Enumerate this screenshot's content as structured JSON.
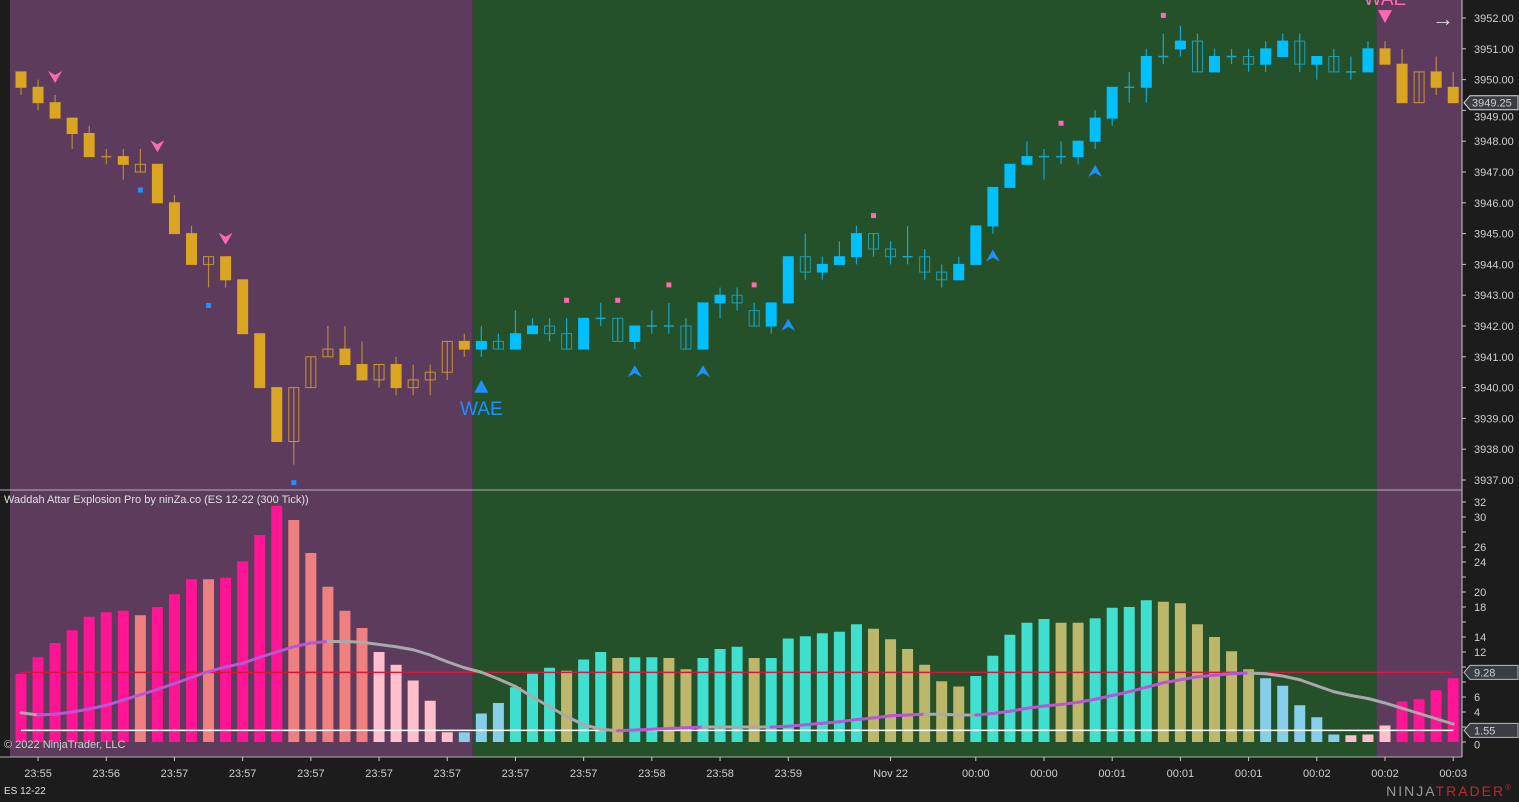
{
  "indicator_title": "Waddah Attar Explosion Pro by ninZa.co (ES 12-22 (300 Tick))",
  "copyright": "© 2022 NinjaTrader, LLC",
  "instrument": "ES 12-22",
  "logo": {
    "part1": "NINJA",
    "part2": "TRADER",
    "mark": "®"
  },
  "scroll_icon": "arrow-right-icon",
  "colors": {
    "bear_background": "#5c3b5c",
    "bull_background": "#24502a",
    "bear_candle": "#DAA520",
    "bull_candle": "#00BFFF",
    "signal_rising": "#BA55D3",
    "signal_falling": "#A9A9A9",
    "explosion_line": "#DC143C",
    "dead_zone": "#FFFFFF",
    "sell_marker": "#FF69B4",
    "buy_marker": "#1E90FF"
  },
  "chart_data": [
    {
      "type": "candlestick",
      "title": "",
      "ylim": [
        3936.75,
        3952.5
      ],
      "yticks": [
        "3952.00",
        "3951.00",
        "3950.00",
        "3949.00",
        "3948.00",
        "3947.00",
        "3946.00",
        "3945.00",
        "3944.00",
        "3943.00",
        "3942.00",
        "3941.00",
        "3940.00",
        "3939.00",
        "3938.00",
        "3937.00"
      ],
      "last_price": "3949.25",
      "trend_regions": [
        {
          "trend": "bearish",
          "from_bar": 0,
          "to_bar": 26
        },
        {
          "trend": "bullish",
          "from_bar": 27,
          "to_bar": 79
        },
        {
          "trend": "bearish",
          "from_bar": 80,
          "to_bar": 84
        }
      ],
      "ohlc": [
        [
          3950.25,
          3950.25,
          3949.5,
          3949.75
        ],
        [
          3949.75,
          3950.0,
          3949.0,
          3949.25
        ],
        [
          3949.25,
          3949.5,
          3948.75,
          3948.75
        ],
        [
          3948.75,
          3948.75,
          3947.75,
          3948.25
        ],
        [
          3948.25,
          3948.5,
          3947.5,
          3947.5
        ],
        [
          3947.5,
          3947.75,
          3947.25,
          3947.5
        ],
        [
          3947.5,
          3947.75,
          3946.75,
          3947.25
        ],
        [
          3947.0,
          3947.75,
          3947.0,
          3947.25
        ],
        [
          3947.25,
          3947.25,
          3946.0,
          3946.0
        ],
        [
          3946.0,
          3946.25,
          3945.0,
          3945.0
        ],
        [
          3945.0,
          3945.25,
          3944.0,
          3944.0
        ],
        [
          3944.0,
          3944.25,
          3943.25,
          3944.25
        ],
        [
          3944.25,
          3944.25,
          3943.25,
          3943.5
        ],
        [
          3943.5,
          3943.5,
          3941.75,
          3941.75
        ],
        [
          3941.75,
          3941.75,
          3940.0,
          3940.0
        ],
        [
          3940.0,
          3940.0,
          3938.25,
          3938.25
        ],
        [
          3938.25,
          3940.0,
          3937.5,
          3940.0
        ],
        [
          3940.0,
          3941.0,
          3940.0,
          3941.0
        ],
        [
          3941.0,
          3942.0,
          3941.0,
          3941.25
        ],
        [
          3941.25,
          3942.0,
          3940.75,
          3940.75
        ],
        [
          3940.75,
          3941.5,
          3940.25,
          3940.25
        ],
        [
          3940.25,
          3940.75,
          3940.0,
          3940.75
        ],
        [
          3940.75,
          3941.0,
          3939.75,
          3940.0
        ],
        [
          3940.0,
          3940.75,
          3939.75,
          3940.25
        ],
        [
          3940.25,
          3940.75,
          3939.75,
          3940.5
        ],
        [
          3940.5,
          3941.5,
          3940.25,
          3941.5
        ],
        [
          3941.5,
          3941.75,
          3941.0,
          3941.25
        ],
        [
          3941.25,
          3942.0,
          3941.0,
          3941.5
        ],
        [
          3941.5,
          3941.75,
          3941.25,
          3941.25
        ],
        [
          3941.25,
          3942.5,
          3941.25,
          3941.75
        ],
        [
          3941.75,
          3942.25,
          3941.75,
          3942.0
        ],
        [
          3942.0,
          3942.25,
          3941.5,
          3941.75
        ],
        [
          3941.75,
          3942.25,
          3941.25,
          3941.25
        ],
        [
          3941.25,
          3942.25,
          3941.25,
          3942.25
        ],
        [
          3942.25,
          3942.75,
          3942.0,
          3942.25
        ],
        [
          3942.25,
          3942.25,
          3941.5,
          3941.5
        ],
        [
          3941.5,
          3942.0,
          3941.25,
          3942.0
        ],
        [
          3942.0,
          3942.5,
          3941.75,
          3942.0
        ],
        [
          3942.0,
          3942.75,
          3941.75,
          3942.0
        ],
        [
          3942.0,
          3942.25,
          3941.25,
          3941.25
        ],
        [
          3941.25,
          3942.75,
          3941.25,
          3942.75
        ],
        [
          3942.75,
          3943.25,
          3942.25,
          3943.0
        ],
        [
          3943.0,
          3943.25,
          3942.5,
          3942.75
        ],
        [
          3942.5,
          3942.75,
          3942.0,
          3942.0
        ],
        [
          3942.0,
          3942.75,
          3941.75,
          3942.75
        ],
        [
          3942.75,
          3944.25,
          3942.75,
          3944.25
        ],
        [
          3944.25,
          3945.0,
          3943.5,
          3943.75
        ],
        [
          3943.75,
          3944.25,
          3943.5,
          3944.0
        ],
        [
          3944.0,
          3944.75,
          3944.0,
          3944.25
        ],
        [
          3944.25,
          3945.25,
          3944.0,
          3945.0
        ],
        [
          3945.0,
          3945.0,
          3944.25,
          3944.5
        ],
        [
          3944.5,
          3944.75,
          3944.0,
          3944.25
        ],
        [
          3944.25,
          3945.25,
          3944.0,
          3944.25
        ],
        [
          3944.25,
          3944.5,
          3943.5,
          3943.75
        ],
        [
          3943.75,
          3944.0,
          3943.25,
          3943.5
        ],
        [
          3943.5,
          3944.25,
          3943.5,
          3944.0
        ],
        [
          3944.0,
          3945.25,
          3944.0,
          3945.25
        ],
        [
          3945.25,
          3946.5,
          3945.0,
          3946.5
        ],
        [
          3946.5,
          3947.25,
          3946.5,
          3947.25
        ],
        [
          3947.25,
          3948.0,
          3947.25,
          3947.5
        ],
        [
          3947.5,
          3947.75,
          3946.75,
          3947.5
        ],
        [
          3947.5,
          3948.0,
          3947.25,
          3947.5
        ],
        [
          3947.5,
          3948.0,
          3947.25,
          3948.0
        ],
        [
          3948.0,
          3949.0,
          3947.75,
          3948.75
        ],
        [
          3948.75,
          3949.75,
          3948.5,
          3949.75
        ],
        [
          3949.75,
          3950.25,
          3949.25,
          3949.75
        ],
        [
          3949.75,
          3951.0,
          3949.25,
          3950.75
        ],
        [
          3950.75,
          3951.5,
          3950.5,
          3950.75
        ],
        [
          3951.0,
          3951.75,
          3950.75,
          3951.25
        ],
        [
          3951.25,
          3951.5,
          3950.25,
          3950.25
        ],
        [
          3950.25,
          3951.0,
          3950.25,
          3950.75
        ],
        [
          3950.75,
          3951.0,
          3950.5,
          3950.75
        ],
        [
          3950.75,
          3951.0,
          3950.25,
          3950.5
        ],
        [
          3950.5,
          3951.25,
          3950.25,
          3951.0
        ],
        [
          3950.75,
          3951.5,
          3950.75,
          3951.25
        ],
        [
          3951.25,
          3951.5,
          3950.25,
          3950.5
        ],
        [
          3950.5,
          3950.75,
          3950.0,
          3950.75
        ],
        [
          3950.75,
          3951.0,
          3950.25,
          3950.25
        ],
        [
          3950.25,
          3950.75,
          3950.0,
          3950.25
        ],
        [
          3950.25,
          3951.25,
          3950.25,
          3951.0
        ],
        [
          3951.0,
          3951.25,
          3950.5,
          3950.5
        ],
        [
          3950.5,
          3951.0,
          3949.25,
          3949.25
        ],
        [
          3949.25,
          3950.25,
          3949.25,
          3950.25
        ],
        [
          3950.25,
          3950.75,
          3949.5,
          3949.75
        ],
        [
          3949.75,
          3950.25,
          3949.25,
          3949.25
        ]
      ],
      "markers": {
        "sell_chevrons": [
          2,
          8,
          12
        ],
        "buy_squares": [
          7,
          11,
          16
        ],
        "sell_squares": [
          32,
          35,
          38,
          43,
          50,
          61,
          67
        ],
        "buy_chevrons": [
          36,
          40,
          45,
          57,
          63
        ],
        "wae_signals": [
          {
            "bar": 27,
            "direction": "up",
            "label": "WAE"
          },
          {
            "bar": 80,
            "direction": "down",
            "label": "WAE"
          }
        ]
      },
      "xticks": [
        {
          "bar": 1,
          "label": "23:55"
        },
        {
          "bar": 5,
          "label": "23:56"
        },
        {
          "bar": 9,
          "label": "23:57"
        },
        {
          "bar": 13,
          "label": "23:57"
        },
        {
          "bar": 17,
          "label": "23:57"
        },
        {
          "bar": 21,
          "label": "23:57"
        },
        {
          "bar": 25,
          "label": "23:57"
        },
        {
          "bar": 29,
          "label": "23:57"
        },
        {
          "bar": 33,
          "label": "23:57"
        },
        {
          "bar": 37,
          "label": "23:58"
        },
        {
          "bar": 41,
          "label": "23:58"
        },
        {
          "bar": 45,
          "label": "23:59"
        },
        {
          "bar": 51,
          "label": "Nov 22"
        },
        {
          "bar": 56,
          "label": "00:00"
        },
        {
          "bar": 60,
          "label": "00:00"
        },
        {
          "bar": 64,
          "label": "00:01"
        },
        {
          "bar": 68,
          "label": "00:01"
        },
        {
          "bar": 72,
          "label": "00:01"
        },
        {
          "bar": 76,
          "label": "00:02"
        },
        {
          "bar": 80,
          "label": "00:02"
        },
        {
          "bar": 84,
          "label": "00:03"
        }
      ]
    },
    {
      "type": "bar",
      "title": "Waddah Attar Explosion Pro by ninZa.co (ES 12-22 (300 Tick))",
      "ylim": [
        0,
        33
      ],
      "yticks": [
        "32",
        "30",
        "26",
        "24",
        "20",
        "18",
        "14",
        "12",
        "6",
        "4",
        "0"
      ],
      "ytick_values": [
        32,
        30,
        28,
        26,
        24,
        22,
        20,
        18,
        16,
        14,
        12,
        10,
        8,
        6,
        4,
        2,
        0
      ],
      "histogram": [
        9.1,
        11.3,
        13.2,
        14.9,
        16.7,
        17.3,
        17.5,
        16.9,
        18.0,
        19.7,
        21.7,
        21.7,
        21.9,
        24.1,
        27.6,
        31.5,
        29.6,
        25.2,
        20.7,
        17.5,
        15.2,
        12.0,
        10.3,
        8.2,
        5.5,
        1.3,
        1.3,
        3.8,
        5.2,
        7.3,
        9.1,
        9.9,
        9.5,
        11.0,
        12.0,
        11.2,
        11.3,
        11.3,
        11.2,
        9.7,
        11.2,
        12.4,
        12.7,
        11.2,
        11.2,
        13.8,
        14.1,
        14.5,
        14.7,
        15.7,
        15.1,
        13.7,
        12.4,
        10.3,
        8.1,
        7.4,
        8.8,
        11.5,
        14.3,
        15.9,
        16.4,
        15.9,
        15.9,
        16.5,
        17.9,
        18.0,
        18.9,
        18.7,
        18.5,
        15.7,
        14.0,
        12.1,
        9.7,
        8.5,
        7.5,
        4.9,
        3.3,
        1.0,
        0.9,
        1.0,
        2.2,
        5.4,
        5.7,
        6.9,
        8.5
      ],
      "histogram_colors": [
        "#FF1493",
        "#FF1493",
        "#FF1493",
        "#FF1493",
        "#FF1493",
        "#FF1493",
        "#FF1493",
        "#F08080",
        "#FF1493",
        "#FF1493",
        "#FF1493",
        "#F08080",
        "#FF1493",
        "#FF1493",
        "#FF1493",
        "#FF1493",
        "#F08080",
        "#F08080",
        "#F08080",
        "#F08080",
        "#F08080",
        "#FFC0CB",
        "#FFC0CB",
        "#FFC0CB",
        "#FFC0CB",
        "#FFC0CB",
        "#87CEEB",
        "#87CEEB",
        "#87CEEB",
        "#40E0D0",
        "#40E0D0",
        "#40E0D0",
        "#BDB76B",
        "#40E0D0",
        "#40E0D0",
        "#BDB76B",
        "#40E0D0",
        "#40E0D0",
        "#BDB76B",
        "#BDB76B",
        "#40E0D0",
        "#40E0D0",
        "#40E0D0",
        "#BDB76B",
        "#40E0D0",
        "#40E0D0",
        "#40E0D0",
        "#40E0D0",
        "#40E0D0",
        "#40E0D0",
        "#BDB76B",
        "#BDB76B",
        "#BDB76B",
        "#BDB76B",
        "#BDB76B",
        "#BDB76B",
        "#40E0D0",
        "#40E0D0",
        "#40E0D0",
        "#40E0D0",
        "#40E0D0",
        "#BDB76B",
        "#BDB76B",
        "#40E0D0",
        "#40E0D0",
        "#40E0D0",
        "#40E0D0",
        "#BDB76B",
        "#BDB76B",
        "#BDB76B",
        "#BDB76B",
        "#BDB76B",
        "#BDB76B",
        "#87CEEB",
        "#87CEEB",
        "#87CEEB",
        "#87CEEB",
        "#87CEEB",
        "#FFC0CB",
        "#FFC0CB",
        "#FFC0CB",
        "#FF1493",
        "#FF1493",
        "#FF1493",
        "#FF1493"
      ],
      "signal_line": [
        3.9,
        3.6,
        3.7,
        4.0,
        4.4,
        4.9,
        5.6,
        6.3,
        7.0,
        7.8,
        8.6,
        9.4,
        10.0,
        10.5,
        11.3,
        12.0,
        12.7,
        13.2,
        13.4,
        13.4,
        13.3,
        13.0,
        12.7,
        12.3,
        11.6,
        10.7,
        9.9,
        9.3,
        8.4,
        7.4,
        6.0,
        4.7,
        3.4,
        2.3,
        1.7,
        1.5,
        1.6,
        1.7,
        1.8,
        1.9,
        2.0,
        2.0,
        2.0,
        2.0,
        2.0,
        2.1,
        2.3,
        2.5,
        2.7,
        3.0,
        3.2,
        3.5,
        3.6,
        3.7,
        3.7,
        3.6,
        3.6,
        3.8,
        4.1,
        4.5,
        4.8,
        5.0,
        5.3,
        5.7,
        6.2,
        6.7,
        7.3,
        7.9,
        8.3,
        8.7,
        8.9,
        9.1,
        9.2,
        9.1,
        8.8,
        8.3,
        7.5,
        6.7,
        6.2,
        5.8,
        5.2,
        4.5,
        3.8,
        3.1,
        2.4
      ],
      "explosion_level": 9.28,
      "explosion_label": "9.28",
      "dead_zone": 1.55,
      "dead_zone_label": "1.55"
    }
  ]
}
